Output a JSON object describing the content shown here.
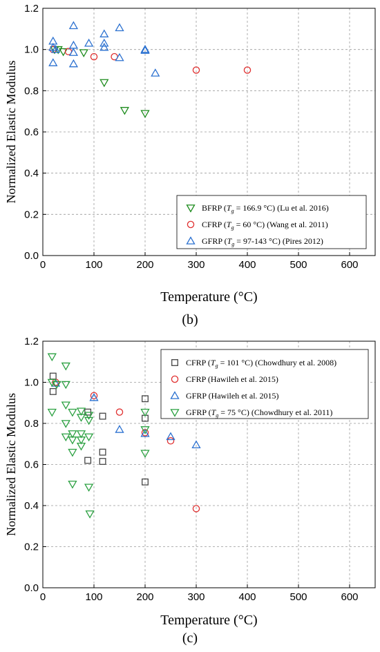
{
  "chart_data": [
    {
      "type": "scatter",
      "panel_label": "(b)",
      "xlabel": "Temperature (°C)",
      "ylabel": "Normalized Elastic Modulus",
      "xlim": [
        0,
        650
      ],
      "ylim": [
        0,
        1.2
      ],
      "x_ticks": [
        0,
        100,
        200,
        300,
        400,
        500,
        600
      ],
      "y_ticks": [
        0.0,
        0.2,
        0.4,
        0.6,
        0.8,
        1.0,
        1.2
      ],
      "grid": true,
      "legend_position": "bottom-right",
      "series": [
        {
          "name": "BFRP",
          "legend": {
            "prefix": "BFRP (",
            "tg": "= 166.9 °C) (Lu et al. 2016)"
          },
          "marker": "triangle-down",
          "color": "#1a8a1a",
          "points": [
            [
              23,
              1.0
            ],
            [
              30,
              1.0
            ],
            [
              40,
              0.99
            ],
            [
              80,
              0.985
            ],
            [
              120,
              0.84
            ],
            [
              160,
              0.705
            ],
            [
              200,
              0.69
            ]
          ]
        },
        {
          "name": "CFRP",
          "legend": {
            "prefix": "CFRP (",
            "tg": "= 60 °C) (Wang et al. 2011)"
          },
          "marker": "circle",
          "color": "#e03030",
          "points": [
            [
              20,
              1.0
            ],
            [
              50,
              0.99
            ],
            [
              100,
              0.965
            ],
            [
              140,
              0.965
            ],
            [
              300,
              0.9
            ],
            [
              400,
              0.9
            ]
          ]
        },
        {
          "name": "GFRP",
          "legend": {
            "prefix": "GFRP (",
            "tg": "= 97-143 °C) (Pires 2012)"
          },
          "marker": "triangle-up",
          "color": "#2a70d0",
          "points": [
            [
              20,
              1.04
            ],
            [
              20,
              1.01
            ],
            [
              20,
              0.935
            ],
            [
              25,
              1.0
            ],
            [
              60,
              1.115
            ],
            [
              60,
              1.02
            ],
            [
              60,
              0.985
            ],
            [
              60,
              0.93
            ],
            [
              90,
              1.03
            ],
            [
              120,
              1.075
            ],
            [
              120,
              1.03
            ],
            [
              120,
              1.01
            ],
            [
              150,
              1.105
            ],
            [
              150,
              0.96
            ],
            [
              200,
              1.0
            ],
            [
              200,
              0.995
            ],
            [
              220,
              0.885
            ]
          ]
        }
      ]
    },
    {
      "type": "scatter",
      "panel_label": "(c)",
      "xlabel": "Temperature (°C)",
      "ylabel": "Normalized Elastic Modulus",
      "xlim": [
        0,
        650
      ],
      "ylim": [
        0,
        1.2
      ],
      "x_ticks": [
        0,
        100,
        200,
        300,
        400,
        500,
        600
      ],
      "y_ticks": [
        0.0,
        0.2,
        0.4,
        0.6,
        0.8,
        1.0,
        1.2
      ],
      "grid": true,
      "legend_position": "top-right",
      "series": [
        {
          "name": "CFRP",
          "legend": {
            "prefix": "CFRP (",
            "tg": "= 101 °C) (Chowdhury et al. 2008)"
          },
          "marker": "square",
          "color": "#444444",
          "points": [
            [
              20,
              1.03
            ],
            [
              20,
              0.955
            ],
            [
              88,
              0.855
            ],
            [
              88,
              0.62
            ],
            [
              117,
              0.835
            ],
            [
              117,
              0.66
            ],
            [
              117,
              0.615
            ],
            [
              200,
              0.92
            ],
            [
              200,
              0.825
            ],
            [
              200,
              0.515
            ]
          ]
        },
        {
          "name": "CFRP",
          "legend": {
            "prefix": "CFRP (Hawileh et al. 2015)",
            "tg": ""
          },
          "marker": "circle",
          "color": "#e03030",
          "points": [
            [
              25,
              1.0
            ],
            [
              100,
              0.935
            ],
            [
              150,
              0.855
            ],
            [
              200,
              0.755
            ],
            [
              250,
              0.715
            ],
            [
              300,
              0.385
            ]
          ]
        },
        {
          "name": "GFRP",
          "legend": {
            "prefix": "GFRP (Hawileh et al. 2015)",
            "tg": ""
          },
          "marker": "triangle-up",
          "color": "#2a70d0",
          "points": [
            [
              25,
              0.995
            ],
            [
              100,
              0.925
            ],
            [
              150,
              0.77
            ],
            [
              200,
              0.75
            ],
            [
              250,
              0.735
            ],
            [
              300,
              0.695
            ]
          ]
        },
        {
          "name": "GFRP",
          "legend": {
            "prefix": "GFRP (",
            "tg": "= 75 °C) (Chowdhury et al. 2011)"
          },
          "marker": "triangle-down",
          "color": "#2aa040",
          "points": [
            [
              18,
              1.125
            ],
            [
              18,
              1.0
            ],
            [
              18,
              0.855
            ],
            [
              27,
              0.99
            ],
            [
              45,
              1.08
            ],
            [
              45,
              0.99
            ],
            [
              45,
              0.89
            ],
            [
              45,
              0.8
            ],
            [
              45,
              0.735
            ],
            [
              58,
              0.855
            ],
            [
              58,
              0.75
            ],
            [
              58,
              0.72
            ],
            [
              58,
              0.66
            ],
            [
              58,
              0.505
            ],
            [
              75,
              0.86
            ],
            [
              75,
              0.83
            ],
            [
              75,
              0.75
            ],
            [
              75,
              0.72
            ],
            [
              75,
              0.69
            ],
            [
              90,
              0.84
            ],
            [
              90,
              0.815
            ],
            [
              90,
              0.735
            ],
            [
              90,
              0.49
            ],
            [
              92,
              0.36
            ],
            [
              200,
              0.855
            ],
            [
              200,
              0.77
            ],
            [
              200,
              0.655
            ]
          ]
        }
      ]
    }
  ]
}
